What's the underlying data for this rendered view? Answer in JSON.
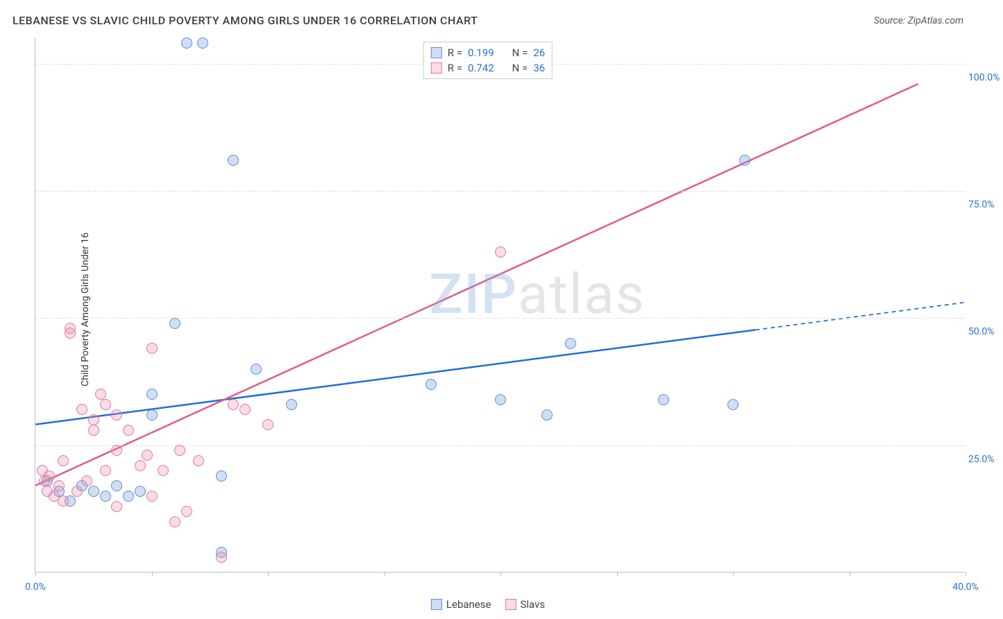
{
  "title": "LEBANESE VS SLAVIC CHILD POVERTY AMONG GIRLS UNDER 16 CORRELATION CHART",
  "source_label": "Source: ZipAtlas.com",
  "y_axis_label": "Child Poverty Among Girls Under 16",
  "watermark_z": "ZIP",
  "watermark_rest": "atlas",
  "chart": {
    "type": "scatter",
    "background_color": "#ffffff",
    "grid_color": "#dddddd",
    "axis_color": "#bbbbbb",
    "xlim": [
      0,
      40
    ],
    "ylim": [
      0,
      105
    ],
    "x_ticks": [
      0,
      5,
      10,
      15,
      20,
      25,
      30,
      35,
      40
    ],
    "x_tick_labels": {
      "0": "0.0%",
      "40": "40.0%"
    },
    "y_gridlines": [
      25,
      50,
      75,
      100
    ],
    "y_tick_labels": {
      "25": "25.0%",
      "50": "50.0%",
      "75": "75.0%",
      "100": "100.0%"
    },
    "tick_label_color": "#2b6fd6",
    "tick_label_fontsize": 14,
    "point_radius": 8,
    "point_stroke_width": 1.5,
    "series": {
      "lebanese": {
        "label": "Lebanese",
        "fill": "rgba(120,160,220,0.35)",
        "stroke": "#5a8fd6",
        "line_color": "#1f6fd6",
        "line_width": 2.5,
        "data": [
          [
            0.5,
            18
          ],
          [
            1,
            16
          ],
          [
            1.5,
            14
          ],
          [
            2,
            17
          ],
          [
            2.5,
            16
          ],
          [
            3,
            15
          ],
          [
            3.5,
            17
          ],
          [
            4,
            15
          ],
          [
            4.5,
            16
          ],
          [
            5,
            31
          ],
          [
            5,
            35
          ],
          [
            6,
            49
          ],
          [
            6.5,
            104
          ],
          [
            7.2,
            104
          ],
          [
            8,
            19
          ],
          [
            8.5,
            81
          ],
          [
            9.5,
            40
          ],
          [
            11,
            33
          ],
          [
            17,
            37
          ],
          [
            20,
            34
          ],
          [
            22,
            31
          ],
          [
            23,
            45
          ],
          [
            27,
            34
          ],
          [
            30,
            33
          ],
          [
            30.5,
            81
          ],
          [
            8,
            4
          ]
        ],
        "trend": {
          "x1": 0,
          "y1": 29,
          "x2": 40,
          "y2": 53,
          "solid_until_x": 31
        }
      },
      "slavs": {
        "label": "Slavs",
        "fill": "rgba(235,140,170,0.30)",
        "stroke": "#d97aa0",
        "line_color": "#e05a8a",
        "line_width": 2.5,
        "data": [
          [
            0.3,
            20
          ],
          [
            0.4,
            18
          ],
          [
            0.5,
            16
          ],
          [
            0.6,
            19
          ],
          [
            0.8,
            15
          ],
          [
            1,
            17
          ],
          [
            1.2,
            22
          ],
          [
            1.5,
            48
          ],
          [
            1.5,
            47
          ],
          [
            1.2,
            14
          ],
          [
            1.8,
            16
          ],
          [
            2,
            32
          ],
          [
            2.2,
            18
          ],
          [
            2.5,
            30
          ],
          [
            2.5,
            28
          ],
          [
            2.8,
            35
          ],
          [
            3,
            20
          ],
          [
            3,
            33
          ],
          [
            3.5,
            31
          ],
          [
            3.5,
            24
          ],
          [
            3.5,
            13
          ],
          [
            4,
            28
          ],
          [
            4.5,
            21
          ],
          [
            4.8,
            23
          ],
          [
            5,
            44
          ],
          [
            5,
            15
          ],
          [
            5.5,
            20
          ],
          [
            6,
            10
          ],
          [
            6.2,
            24
          ],
          [
            6.5,
            12
          ],
          [
            7,
            22
          ],
          [
            8,
            3
          ],
          [
            8.5,
            33
          ],
          [
            9,
            32
          ],
          [
            10,
            29
          ],
          [
            20,
            63
          ]
        ],
        "trend": {
          "x1": 0,
          "y1": 17,
          "x2": 38,
          "y2": 96
        }
      }
    }
  },
  "legend_top": [
    {
      "series": "lebanese",
      "r_label": "R =",
      "r": "0.199",
      "n_label": "N =",
      "n": "26"
    },
    {
      "series": "slavs",
      "r_label": "R =",
      "r": "0.742",
      "n_label": "N =",
      "n": "36"
    }
  ],
  "legend_bottom": [
    {
      "series": "lebanese"
    },
    {
      "series": "slavs"
    }
  ]
}
